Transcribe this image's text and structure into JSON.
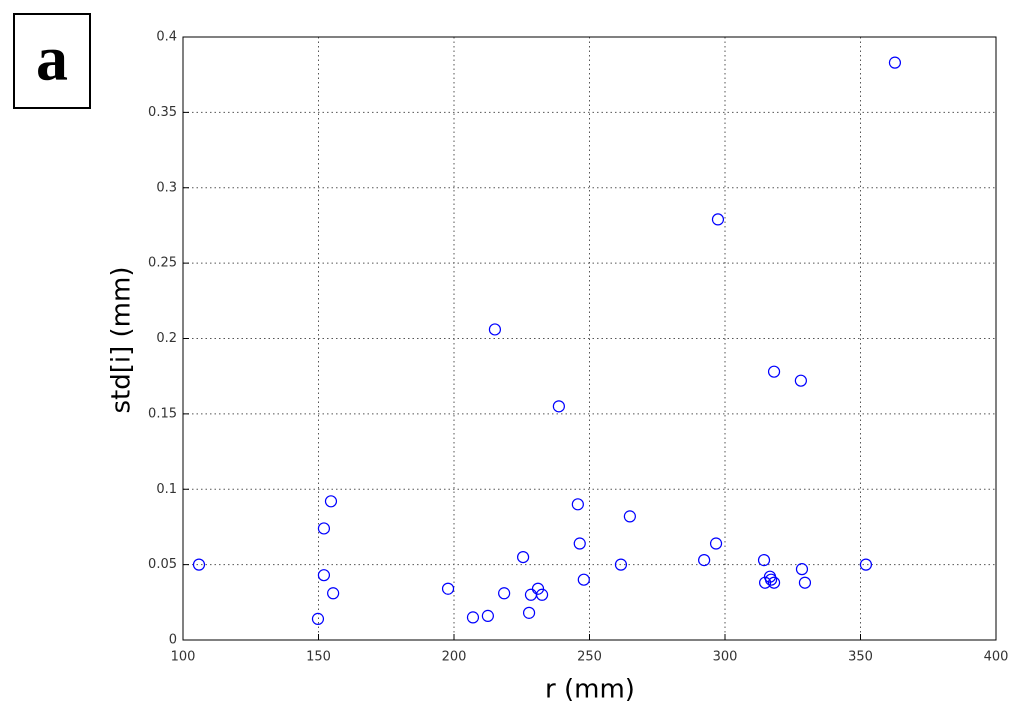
{
  "panel_label": "a",
  "chart_data": {
    "type": "scatter",
    "xlabel": "r (mm)",
    "ylabel": "std[i] (mm)",
    "color": "#0000ff",
    "grid": true,
    "xlim": [
      100,
      400
    ],
    "xticks": [
      100,
      150,
      200,
      250,
      300,
      350,
      400
    ],
    "ylim": [
      0,
      0.4
    ],
    "yticks": [
      0,
      0.05,
      0.1,
      0.15,
      0.2,
      0.25,
      0.3,
      0.35,
      0.4
    ],
    "x": [
      105.9,
      149.8,
      152,
      152,
      154.6,
      155.4,
      197.8,
      207,
      212.5,
      215.1,
      218.5,
      225.5,
      227.7,
      228.4,
      231,
      232.5,
      238.7,
      245.7,
      246.4,
      247.9,
      261.6,
      264.9,
      292.3,
      296.7,
      297.4,
      314.4,
      314.8,
      316.6,
      317,
      318.1,
      318.1,
      328,
      328.4,
      329.5,
      352,
      362.7
    ],
    "values": [
      0.05,
      0.014,
      0.043,
      0.074,
      0.092,
      0.031,
      0.034,
      0.015,
      0.016,
      0.206,
      0.031,
      0.055,
      0.018,
      0.03,
      0.034,
      0.03,
      0.155,
      0.09,
      0.064,
      0.04,
      0.05,
      0.082,
      0.053,
      0.064,
      0.279,
      0.053,
      0.038,
      0.042,
      0.04,
      0.038,
      0.178,
      0.172,
      0.047,
      0.038,
      0.05,
      0.383
    ]
  }
}
